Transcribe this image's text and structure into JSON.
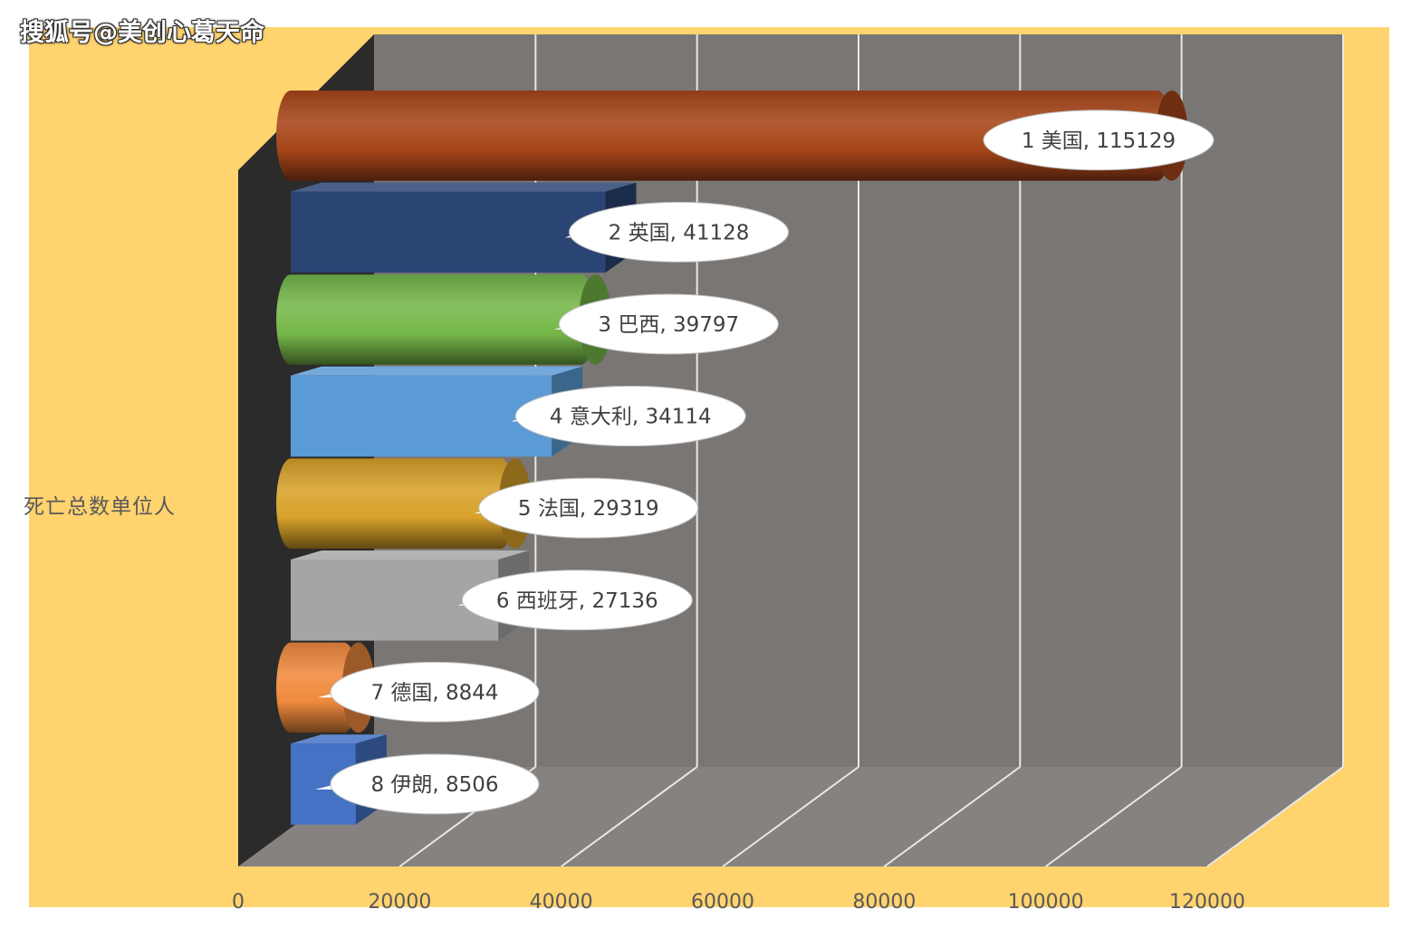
{
  "watermark": "搜狐号@美创心葛天命",
  "chart_data": {
    "type": "bar",
    "orientation": "horizontal",
    "style": "3d",
    "categories": [
      "1 美国",
      "2 英国",
      "3 巴西",
      "4 意大利",
      "5 法国",
      "6 西班牙",
      "7 德国",
      "8 伊朗"
    ],
    "values": [
      115129,
      41128,
      39797,
      34114,
      29319,
      27136,
      8844,
      8506
    ],
    "data_labels": [
      "1 美国, 115129",
      "2 英国, 41128",
      "3 巴西, 39797",
      "4 意大利, 34114",
      "5 法国, 29319",
      "6 西班牙, 27136",
      "7 德国, 8844",
      "8 伊朗, 8506"
    ],
    "shapes": [
      "cylinder",
      "box",
      "cylinder",
      "box",
      "cylinder",
      "box",
      "cylinder",
      "box"
    ],
    "colors": [
      "#a8461a",
      "#2a4474",
      "#76b84a",
      "#5b9bd5",
      "#d8a22a",
      "#a5a5a5",
      "#f08a3e",
      "#4472c4"
    ],
    "ylabel": "死亡总数单位人",
    "xlim": [
      0,
      120000
    ],
    "xticks": [
      "0",
      "20000",
      "40000",
      "60000",
      "80000",
      "100000",
      "120000"
    ],
    "grid": true,
    "legend": "none"
  },
  "colors": {
    "chart_background": "#ffd36e",
    "wall": "#7a7674",
    "floor": "#858280",
    "side_wall": "#2b2b2b",
    "gridline": "#e8e8e8",
    "tick_label": "#595959"
  }
}
